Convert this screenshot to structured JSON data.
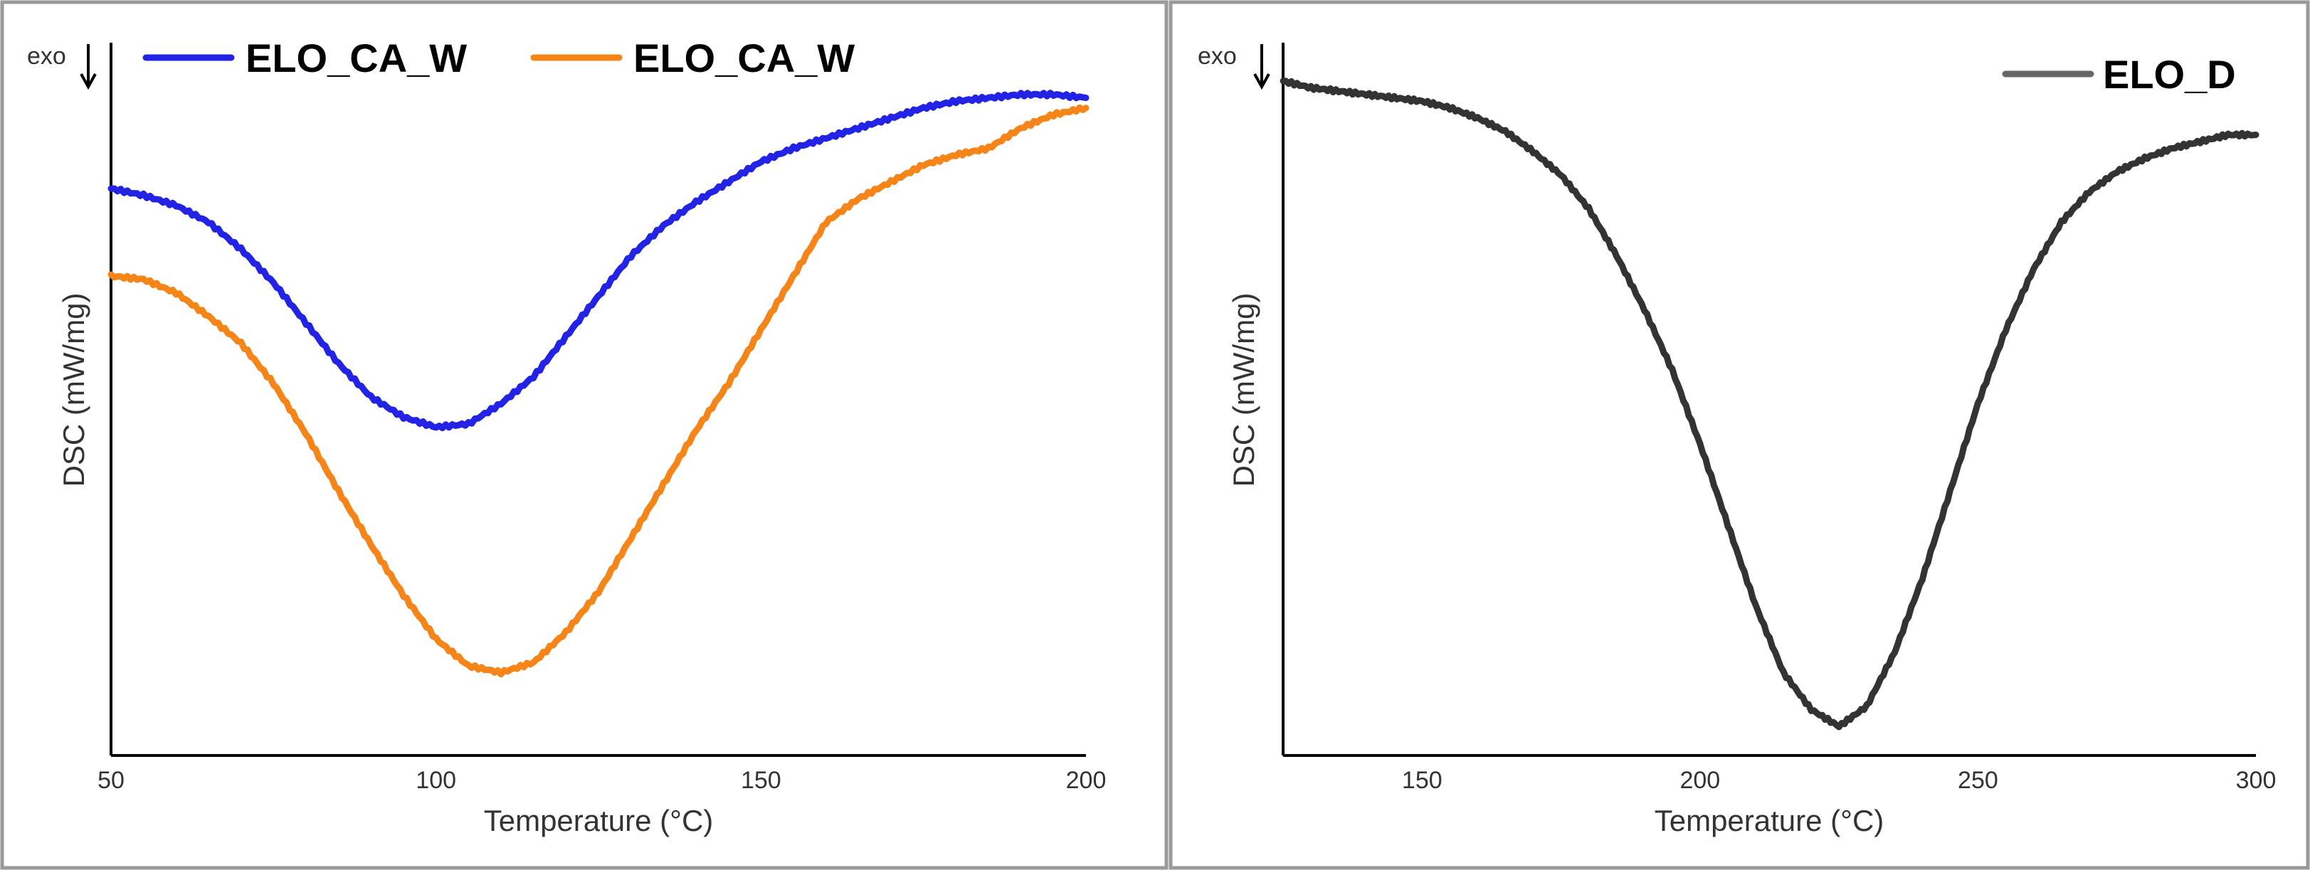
{
  "chart_data": [
    {
      "type": "line",
      "title": "",
      "xlabel": "Temperature (°C)",
      "ylabel": "DSC (mW/mg)",
      "direction_marker": "exo",
      "xlim": [
        50,
        200
      ],
      "ylim": [
        0,
        100
      ],
      "xticks": [
        "50",
        "100",
        "150",
        "200"
      ],
      "yticks": [],
      "grid": false,
      "legend_position": "top-left",
      "series": [
        {
          "name": "ELO_CA_W",
          "color": "#2323e6",
          "x": [
            50,
            55,
            60,
            65,
            70,
            75,
            80,
            85,
            90,
            95,
            100,
            105,
            110,
            115,
            120,
            125,
            130,
            135,
            140,
            145,
            150,
            155,
            160,
            165,
            170,
            175,
            180,
            185,
            190,
            195,
            200
          ],
          "y": [
            82,
            81,
            79.5,
            77,
            73,
            68,
            62,
            56,
            51,
            48,
            46.5,
            47,
            50,
            54,
            60,
            66,
            72,
            76.5,
            80,
            83,
            86,
            88,
            89.5,
            91,
            92.5,
            94,
            95,
            95.5,
            96,
            96,
            95.5
          ]
        },
        {
          "name": "ELO_CA_W",
          "color": "#f58518",
          "x": [
            50,
            55,
            60,
            65,
            70,
            75,
            80,
            85,
            90,
            95,
            100,
            105,
            110,
            115,
            120,
            125,
            130,
            135,
            140,
            145,
            150,
            155,
            160,
            165,
            170,
            175,
            180,
            185,
            190,
            195,
            200
          ],
          "y": [
            69,
            68.5,
            66.5,
            63,
            59,
            53,
            45.5,
            37,
            29,
            21.5,
            15,
            11,
            10,
            11.5,
            16,
            22,
            30,
            38,
            46,
            53,
            61,
            69,
            77,
            80.5,
            83,
            85.5,
            87,
            88,
            91,
            93,
            94
          ]
        }
      ]
    },
    {
      "type": "line",
      "title": "",
      "xlabel": "Temperature (°C)",
      "ylabel": "DSC (mW/mg)",
      "direction_marker": "exo",
      "xlim": [
        125,
        300
      ],
      "ylim": [
        0,
        100
      ],
      "xticks": [
        "150",
        "200",
        "250",
        "300"
      ],
      "yticks": [],
      "grid": false,
      "legend_position": "top-right",
      "series": [
        {
          "name": "ELO_D",
          "color": "#333333",
          "x": [
            125,
            130,
            135,
            140,
            145,
            150,
            155,
            160,
            165,
            170,
            175,
            180,
            185,
            190,
            195,
            200,
            205,
            210,
            215,
            220,
            225,
            230,
            235,
            240,
            245,
            250,
            255,
            260,
            265,
            270,
            275,
            280,
            285,
            290,
            295,
            300
          ],
          "y": [
            98,
            97,
            96.5,
            96,
            95.5,
            95,
            94,
            92.5,
            90.5,
            87.5,
            84,
            79,
            72,
            64,
            55,
            44,
            32,
            20,
            10,
            4.5,
            2,
            5,
            13,
            24,
            37,
            50,
            61,
            70,
            77,
            81.5,
            84.5,
            86.5,
            88,
            89,
            90,
            90
          ]
        }
      ]
    }
  ]
}
